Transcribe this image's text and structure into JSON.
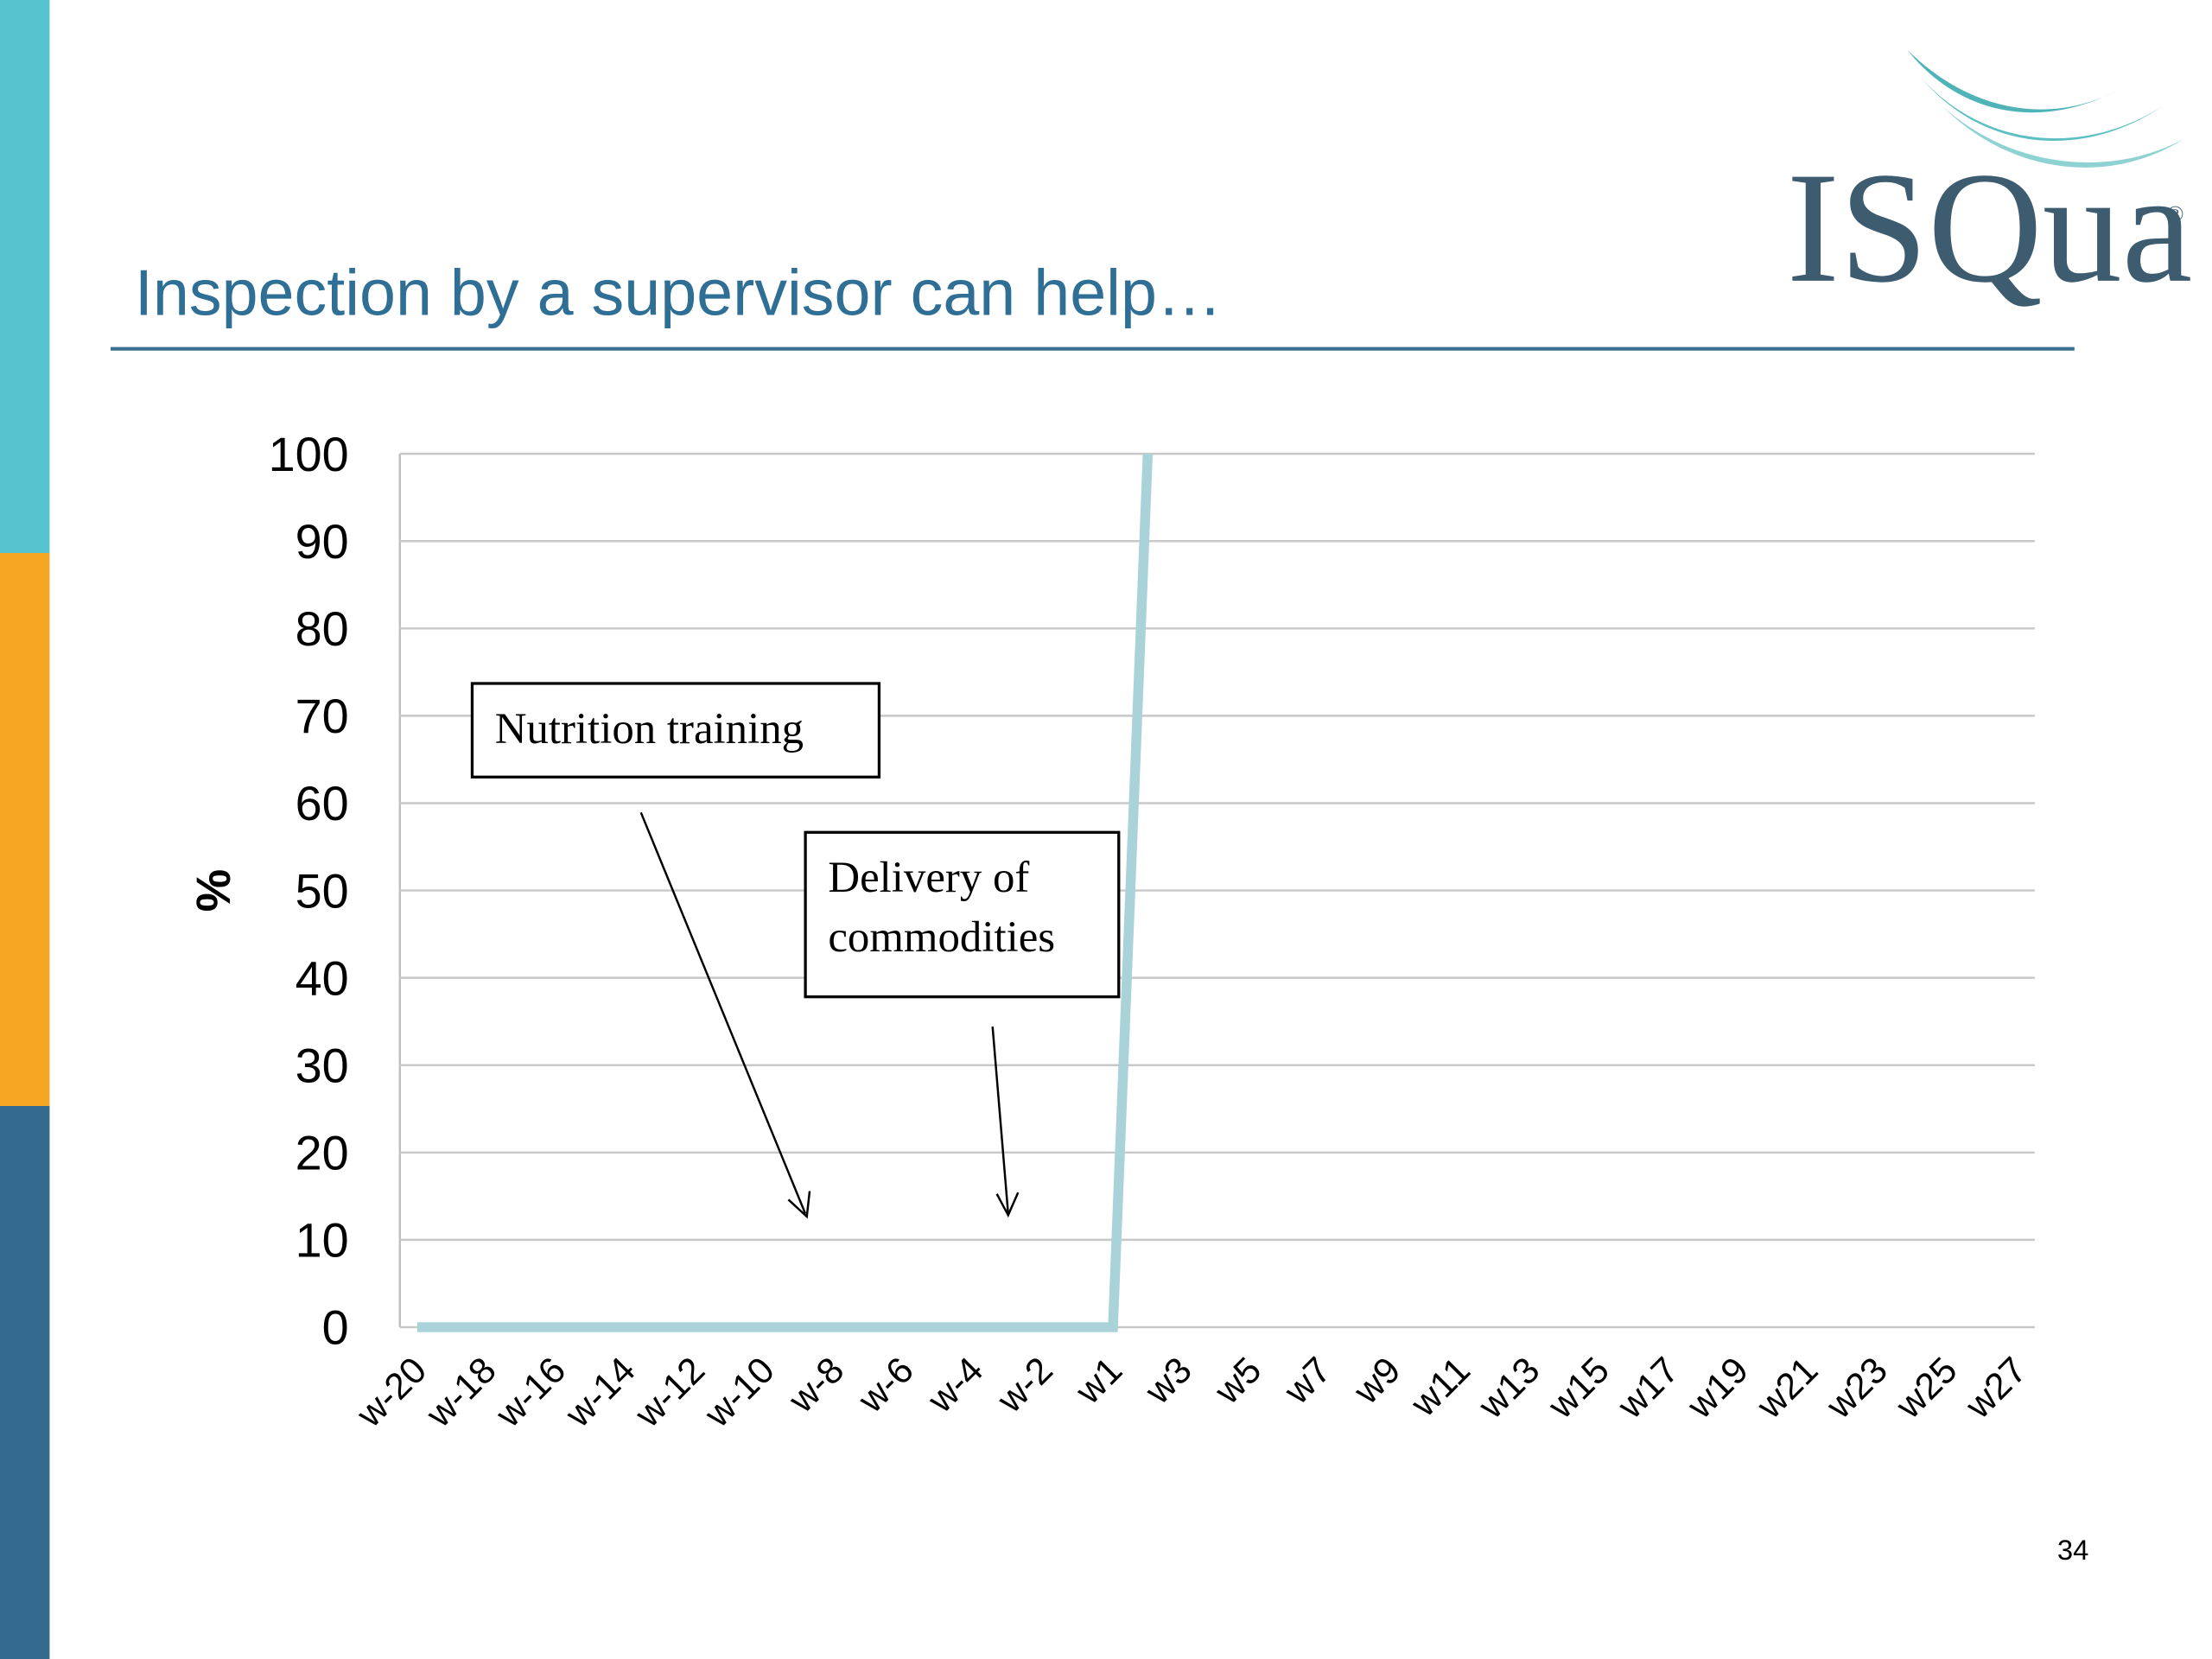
{
  "slide": {
    "title": "Inspection by a supervisor can help…",
    "logo": "ISQua",
    "logo_mark": "®",
    "page_number": "34"
  },
  "chart_data": {
    "type": "line",
    "categories": [
      "w-20",
      null,
      "w-18",
      null,
      "w-16",
      null,
      "w-14",
      null,
      "w-12",
      null,
      "w-10",
      null,
      "w-8",
      null,
      "w-6",
      null,
      "w-4",
      null,
      "w-2",
      null,
      "w1",
      null,
      "w3",
      null,
      "w5",
      null,
      "w7",
      null,
      "w9",
      null,
      "w11",
      null,
      "w13",
      null,
      "w15",
      null,
      "w17",
      null,
      "w19",
      null,
      "w21",
      null,
      "w23",
      null,
      "w25",
      null,
      "w27"
    ],
    "series": [
      {
        "color": "#a9d3d8",
        "values": [
          0,
          0,
          0,
          0,
          0,
          0,
          0,
          0,
          0,
          0,
          0,
          0,
          0,
          0,
          0,
          0,
          0,
          0,
          0,
          0,
          0,
          100,
          null,
          null,
          null,
          null,
          null,
          null,
          null,
          null,
          null,
          null,
          null,
          null,
          null,
          null,
          null,
          null,
          null,
          null,
          null,
          null,
          null,
          null,
          null,
          null,
          null
        ]
      }
    ],
    "ylabel": "%",
    "ylim": [
      0,
      100
    ],
    "yticks": [
      0,
      10,
      20,
      30,
      40,
      50,
      60,
      70,
      80,
      90,
      100
    ],
    "grid": true,
    "annotations": [
      [
        "Nutrition training"
      ],
      [
        "Delivery of",
        "commodities"
      ]
    ]
  }
}
